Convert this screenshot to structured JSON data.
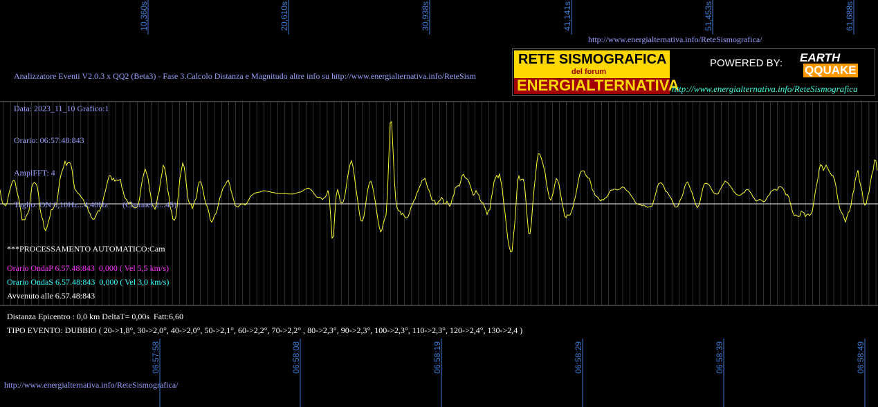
{
  "top_link": "http://www.energialternativa.info/ReteSismografica/",
  "header": {
    "lines": [
      "Analizzatore Eventi V2.0.3 x QQ2 (Beta3) - Fase 3.Calcolo Distanza e Magnitudo altre info su http://www.energialternativa.info/ReteSism",
      "Data: 2023_11_10 Grafico:1",
      "Orario: 06:57:48:843",
      "AmplFFT: 4",
      "Taglio: ON 0,10Hz...4,40Hz       (Channel 2...45)"
    ]
  },
  "logo": {
    "title": "RETE SISMOGRAFICA",
    "subtitle": "del forum",
    "brand": "ENERGIALTERNATIVA",
    "powered": "POWERED BY:",
    "earth": "EARTH",
    "quake": "QQUAKE",
    "link": "http://www.energialternativa.info/ReteSismografica"
  },
  "time_top": [
    "10,360s",
    "20,610s",
    "30,938s",
    "41,141s",
    "51,453s",
    "61,688s"
  ],
  "time_bottom": [
    "06:57:58",
    "06:58:08",
    "06:58:19",
    "06:58:29",
    "06:58:39",
    "06:58:49"
  ],
  "processing": {
    "mode": "***PROCESSAMENTO AUTOMATICO:Cam",
    "wave_p": "Orario OndaP 6.57.48:843  0,000 ( Vel 5,5 km/s)",
    "wave_s": "Orario OndaS 6.57.48:843  0,000 ( Vel 3,0 km/s)",
    "occurred": "Avvenuto alle 6.57.48:843"
  },
  "result": {
    "distance": "Distanza Epicentro : 0,0 km DeltaT= 0,00s  Fatt:6,60",
    "event_type": "TIPO EVENTO: DUBBIO ( 20->1,8°, 30->2,0°, 40->2,0°, 50->2,1°, 60->2,2°, 70->2,2° , 80->2,3°, 90->2,3°, 100->2,3°, 110->2,3°, 120->2,4°, 130->2,4 )"
  },
  "bottom_link": "http://www.energialternativa.info/ReteSismografica/"
}
